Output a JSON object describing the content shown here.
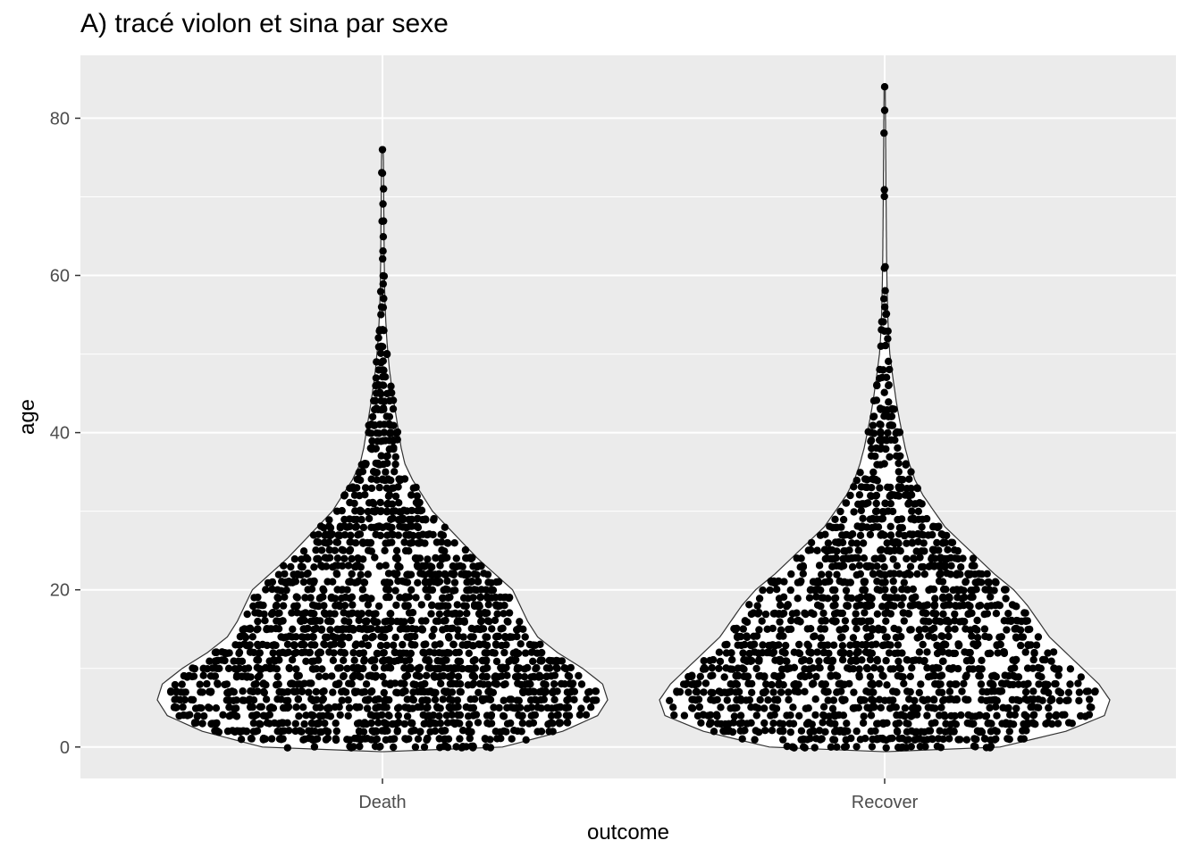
{
  "chart_data": {
    "type": "violin",
    "overlay": "sina",
    "title": "A) tracé violon et sina par sexe",
    "xlabel": "outcome",
    "ylabel": "age",
    "categories": [
      "Death",
      "Recover"
    ],
    "ylim": [
      -4,
      88
    ],
    "yticks": [
      0,
      20,
      40,
      60,
      80
    ],
    "grid": true,
    "colors": {
      "panel": "#ebebeb",
      "grid": "#ffffff",
      "violin_fill": "#ffffff",
      "violin_outline": "#333333",
      "points": "#000000",
      "tick_text": "#4d4d4d"
    },
    "groups": [
      {
        "name": "Death",
        "max_age": 76,
        "min_age": 0,
        "density_profile": [
          [
            0,
            0.48
          ],
          [
            2,
            0.72
          ],
          [
            4,
            0.86
          ],
          [
            6,
            0.9
          ],
          [
            8,
            0.88
          ],
          [
            10,
            0.8
          ],
          [
            12,
            0.7
          ],
          [
            14,
            0.62
          ],
          [
            16,
            0.58
          ],
          [
            18,
            0.55
          ],
          [
            20,
            0.52
          ],
          [
            22,
            0.45
          ],
          [
            24,
            0.38
          ],
          [
            26,
            0.32
          ],
          [
            28,
            0.26
          ],
          [
            30,
            0.2
          ],
          [
            32,
            0.16
          ],
          [
            34,
            0.12
          ],
          [
            36,
            0.09
          ],
          [
            38,
            0.075
          ],
          [
            40,
            0.065
          ],
          [
            42,
            0.055
          ],
          [
            44,
            0.045
          ],
          [
            46,
            0.036
          ],
          [
            48,
            0.028
          ],
          [
            50,
            0.022
          ],
          [
            52,
            0.017
          ],
          [
            55,
            0.012
          ],
          [
            58,
            0.009
          ],
          [
            62,
            0.007
          ],
          [
            66,
            0.006
          ],
          [
            70,
            0.005
          ],
          [
            74,
            0.004
          ],
          [
            76,
            0.003
          ]
        ],
        "n_points": 2000
      },
      {
        "name": "Recover",
        "max_age": 84,
        "min_age": 0,
        "density_profile": [
          [
            0,
            0.42
          ],
          [
            2,
            0.66
          ],
          [
            4,
            0.8
          ],
          [
            6,
            0.82
          ],
          [
            8,
            0.78
          ],
          [
            10,
            0.72
          ],
          [
            12,
            0.66
          ],
          [
            14,
            0.6
          ],
          [
            16,
            0.56
          ],
          [
            18,
            0.52
          ],
          [
            20,
            0.47
          ],
          [
            22,
            0.4
          ],
          [
            24,
            0.34
          ],
          [
            26,
            0.28
          ],
          [
            28,
            0.22
          ],
          [
            30,
            0.18
          ],
          [
            32,
            0.14
          ],
          [
            34,
            0.11
          ],
          [
            36,
            0.09
          ],
          [
            38,
            0.075
          ],
          [
            40,
            0.063
          ],
          [
            42,
            0.052
          ],
          [
            44,
            0.042
          ],
          [
            46,
            0.034
          ],
          [
            48,
            0.026
          ],
          [
            50,
            0.019
          ],
          [
            52,
            0.015
          ],
          [
            55,
            0.011
          ],
          [
            58,
            0.009
          ],
          [
            62,
            0.007
          ],
          [
            66,
            0.006
          ],
          [
            70,
            0.005
          ],
          [
            75,
            0.004
          ],
          [
            80,
            0.003
          ],
          [
            84,
            0.002
          ]
        ],
        "n_points": 1700
      }
    ]
  }
}
